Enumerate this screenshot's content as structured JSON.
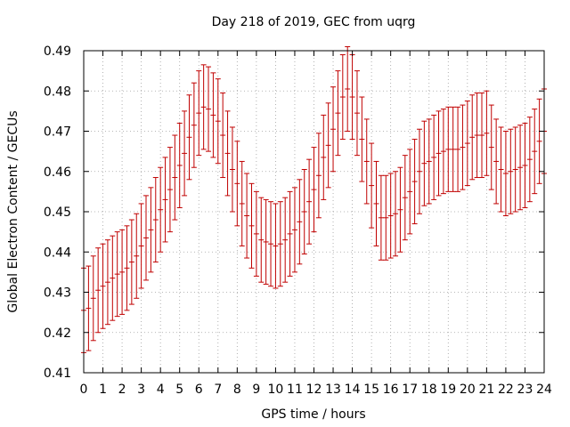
{
  "chart_data": {
    "type": "line",
    "title": "Day 218 of 2019, GEC from uqrg",
    "xlabel": "GPS time / hours",
    "ylabel": "Global Electron Content / GECUs",
    "xlim": [
      0,
      24
    ],
    "ylim": [
      0.41,
      0.49
    ],
    "x_ticks": [
      0,
      1,
      2,
      3,
      4,
      5,
      6,
      7,
      8,
      9,
      10,
      11,
      12,
      13,
      14,
      15,
      16,
      17,
      18,
      19,
      20,
      21,
      22,
      23,
      24
    ],
    "y_ticks": [
      0.41,
      0.42,
      0.43,
      0.44,
      0.45,
      0.46,
      0.47,
      0.48,
      0.49
    ],
    "y_tick_labels": [
      "0.41",
      "0.42",
      "0.43",
      "0.44",
      "0.45",
      "0.46",
      "0.47",
      "0.48",
      "0.49"
    ],
    "grid": true,
    "legend": "none",
    "series": [
      {
        "color": "#c00000",
        "x": [
          0,
          0.25,
          0.5,
          0.75,
          1,
          1.25,
          1.5,
          1.75,
          2,
          2.25,
          2.5,
          2.75,
          3,
          3.25,
          3.5,
          3.75,
          4,
          4.25,
          4.5,
          4.75,
          5,
          5.25,
          5.5,
          5.75,
          6,
          6.25,
          6.5,
          6.75,
          7,
          7.25,
          7.5,
          7.75,
          8,
          8.25,
          8.5,
          8.75,
          9,
          9.25,
          9.5,
          9.75,
          10,
          10.25,
          10.5,
          10.75,
          11,
          11.25,
          11.5,
          11.75,
          12,
          12.25,
          12.5,
          12.75,
          13,
          13.25,
          13.5,
          13.75,
          14,
          14.25,
          14.5,
          14.75,
          15,
          15.25,
          15.5,
          15.75,
          16,
          16.25,
          16.5,
          16.75,
          17,
          17.25,
          17.5,
          17.75,
          18,
          18.25,
          18.5,
          18.75,
          19,
          19.25,
          19.5,
          19.75,
          20,
          20.25,
          20.5,
          20.75,
          21,
          21.25,
          21.5,
          21.75,
          22,
          22.25,
          22.5,
          22.75,
          23,
          23.25,
          23.5,
          23.75,
          24
        ],
        "values": [
          0.4255,
          0.426,
          0.4285,
          0.4305,
          0.4315,
          0.4325,
          0.4335,
          0.4345,
          0.435,
          0.436,
          0.4375,
          0.439,
          0.4415,
          0.4435,
          0.4455,
          0.448,
          0.4505,
          0.453,
          0.4555,
          0.4585,
          0.4615,
          0.4645,
          0.4685,
          0.4715,
          0.4745,
          0.476,
          0.4755,
          0.474,
          0.4725,
          0.469,
          0.4645,
          0.4605,
          0.457,
          0.452,
          0.449,
          0.4465,
          0.4445,
          0.443,
          0.4425,
          0.442,
          0.4415,
          0.442,
          0.443,
          0.4445,
          0.4455,
          0.4475,
          0.45,
          0.4525,
          0.4555,
          0.459,
          0.4635,
          0.4665,
          0.4705,
          0.4745,
          0.4785,
          0.4805,
          0.4785,
          0.4745,
          0.468,
          0.4625,
          0.4565,
          0.452,
          0.4485,
          0.4485,
          0.449,
          0.4495,
          0.4505,
          0.4535,
          0.455,
          0.4575,
          0.46,
          0.462,
          0.4625,
          0.4635,
          0.4645,
          0.465,
          0.4655,
          0.4655,
          0.4655,
          0.466,
          0.467,
          0.4685,
          0.469,
          0.469,
          0.4695,
          0.466,
          0.4625,
          0.4605,
          0.4595,
          0.46,
          0.4605,
          0.461,
          0.4615,
          0.463,
          0.465,
          0.4675,
          0.47
        ],
        "errors": [
          0.0105,
          0.0105,
          0.0105,
          0.0105,
          0.0105,
          0.0105,
          0.0105,
          0.0105,
          0.0105,
          0.0105,
          0.0105,
          0.0105,
          0.0105,
          0.0105,
          0.0105,
          0.0105,
          0.0105,
          0.0105,
          0.0105,
          0.0105,
          0.0105,
          0.0105,
          0.0105,
          0.0105,
          0.0105,
          0.0105,
          0.0105,
          0.0105,
          0.0105,
          0.0105,
          0.0105,
          0.0105,
          0.0105,
          0.0105,
          0.0105,
          0.0105,
          0.0105,
          0.0105,
          0.0105,
          0.0105,
          0.0105,
          0.0105,
          0.0105,
          0.0105,
          0.0105,
          0.0105,
          0.0105,
          0.0105,
          0.0105,
          0.0105,
          0.0105,
          0.0105,
          0.0105,
          0.0105,
          0.0105,
          0.0105,
          0.0105,
          0.0105,
          0.0105,
          0.0105,
          0.0105,
          0.0105,
          0.0105,
          0.0105,
          0.0105,
          0.0105,
          0.0105,
          0.0105,
          0.0105,
          0.0105,
          0.0105,
          0.0105,
          0.0105,
          0.0105,
          0.0105,
          0.0105,
          0.0105,
          0.0105,
          0.0105,
          0.0105,
          0.0105,
          0.0105,
          0.0105,
          0.0105,
          0.0105,
          0.0105,
          0.0105,
          0.0105,
          0.0105,
          0.0105,
          0.0105,
          0.0105,
          0.0105,
          0.0105,
          0.0105,
          0.0105,
          0.0105
        ]
      }
    ]
  }
}
